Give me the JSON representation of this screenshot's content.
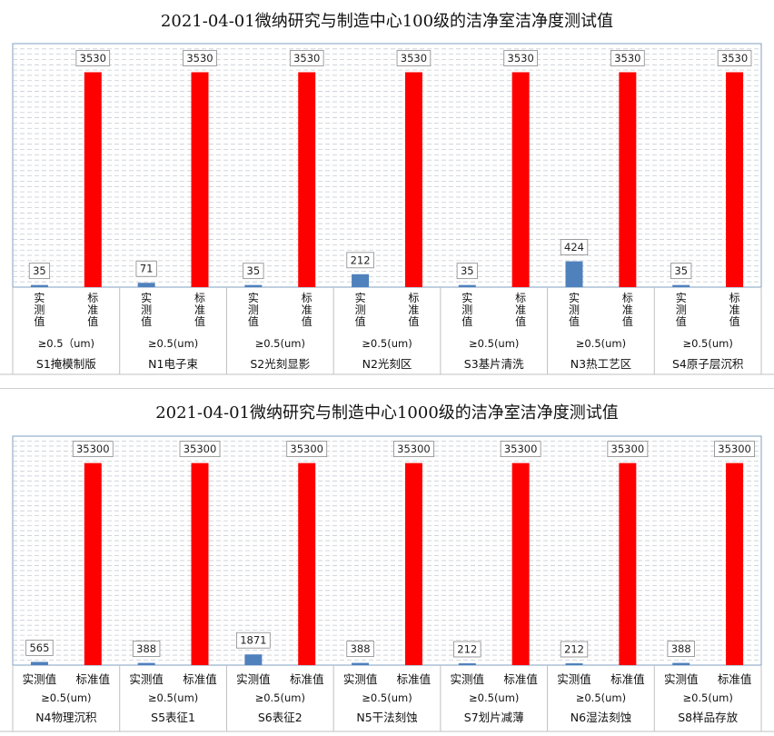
{
  "charts": [
    {
      "title": "2021-04-01微纳研究与制造中心100级的洁净室洁净度测试值",
      "chart_data": {
        "type": "bar",
        "categories": [
          "S1掩模制版",
          "N1电子束",
          "S2光刻显影",
          "N2光刻区",
          "S3基片清洗",
          "N3热工艺区",
          "S4原子层沉积"
        ],
        "size_labels": [
          "≥0.5（um)",
          "≥0.5(um)",
          "≥0.5(um)",
          "≥0.5(um)",
          "≥0.5(um)",
          "≥0.5(um)",
          "≥0.5(um)"
        ],
        "series": [
          {
            "name": "实测值",
            "color": "#4f81bd",
            "values": [
              35,
              71,
              35,
              212,
              35,
              424,
              35
            ]
          },
          {
            "name": "标准值",
            "color": "#ff0000",
            "values": [
              3530,
              3530,
              3530,
              3530,
              3530,
              3530,
              3530
            ]
          }
        ],
        "ylim": [
          0,
          4000
        ],
        "grid": true,
        "series_label_orientation": "vertical"
      }
    },
    {
      "title": "2021-04-01微纳研究与制造中心1000级的洁净室洁净度测试值",
      "chart_data": {
        "type": "bar",
        "categories": [
          "N4物理沉积",
          "S5表征1",
          "S6表征2",
          "N5干法刻蚀",
          "S7划片减薄",
          "N6湿法刻蚀",
          "S8样品存放"
        ],
        "size_labels": [
          "≥0.5(um)",
          "≥0.5(um)",
          "≥0.5(um)",
          "≥0.5(um)",
          "≥0.5(um)",
          "≥0.5(um)",
          "≥0.5(um)"
        ],
        "series": [
          {
            "name": "实测值",
            "color": "#4f81bd",
            "values": [
              565,
              388,
              1871,
              388,
              212,
              212,
              388
            ]
          },
          {
            "name": "标准值",
            "color": "#ff0000",
            "values": [
              35300,
              35300,
              35300,
              35300,
              35300,
              35300,
              35300
            ]
          }
        ],
        "ylim": [
          0,
          40000
        ],
        "grid": true,
        "series_label_orientation": "horizontal"
      }
    }
  ]
}
